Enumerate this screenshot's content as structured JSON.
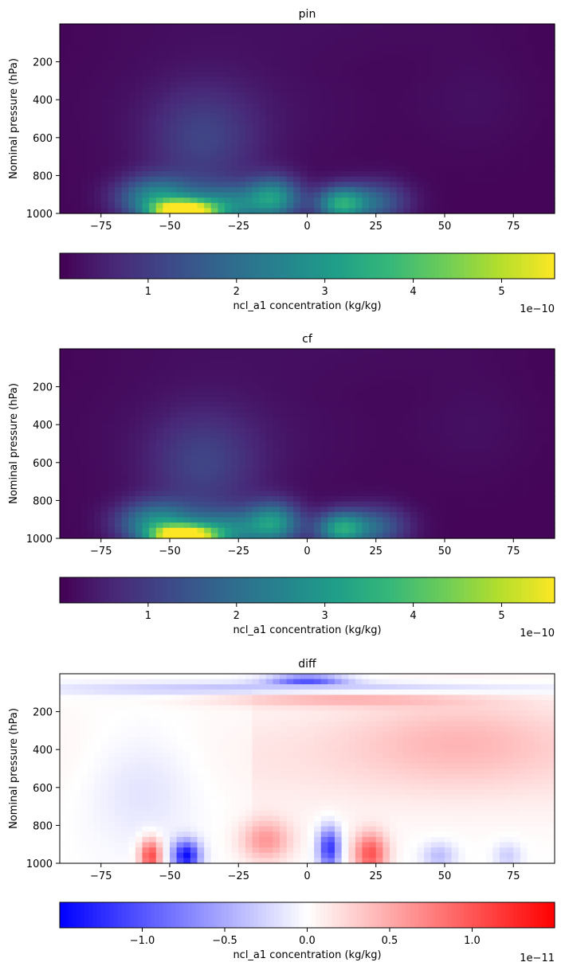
{
  "chart_data": [
    {
      "type": "heatmap",
      "title": "pin",
      "xlabel": "",
      "ylabel": "Nominal pressure (hPa)",
      "xlim": [
        -90,
        90
      ],
      "ylim": [
        1000,
        0
      ],
      "xticks": [
        -75,
        -50,
        -25,
        0,
        25,
        50,
        75
      ],
      "yticks": [
        200,
        400,
        600,
        800,
        1000
      ],
      "colormap": "viridis",
      "colorbar": {
        "label": "ncl_a1 concentration (kg/kg)",
        "range": [
          0,
          5.6
        ],
        "ticks": [
          1,
          2,
          3,
          4,
          5
        ],
        "tick_labels": [
          "1",
          "2",
          "3",
          "4",
          "5"
        ],
        "exponent": "1e−10"
      },
      "features": [
        {
          "lat": -45,
          "pressure": 990,
          "value": 5.6,
          "lat_spread": 11,
          "p_spread": 55
        },
        {
          "lat": -55,
          "pressure": 920,
          "value": 2.6,
          "lat_spread": 14,
          "p_spread": 110
        },
        {
          "lat": -30,
          "pressure": 960,
          "value": 2.2,
          "lat_spread": 14,
          "p_spread": 110
        },
        {
          "lat": -12,
          "pressure": 920,
          "value": 2.7,
          "lat_spread": 10,
          "p_spread": 110
        },
        {
          "lat": 12,
          "pressure": 950,
          "value": 3.0,
          "lat_spread": 9,
          "p_spread": 90
        },
        {
          "lat": 25,
          "pressure": 940,
          "value": 1.6,
          "lat_spread": 12,
          "p_spread": 110
        },
        {
          "lat": -38,
          "pressure": 620,
          "value": 0.9,
          "lat_spread": 20,
          "p_spread": 280
        }
      ]
    },
    {
      "type": "heatmap",
      "title": "cf",
      "xlabel": "",
      "ylabel": "Nominal pressure (hPa)",
      "xlim": [
        -90,
        90
      ],
      "ylim": [
        1000,
        0
      ],
      "xticks": [
        -75,
        -50,
        -25,
        0,
        25,
        50,
        75
      ],
      "yticks": [
        200,
        400,
        600,
        800,
        1000
      ],
      "colormap": "viridis",
      "colorbar": {
        "label": "ncl_a1 concentration (kg/kg)",
        "range": [
          0,
          5.6
        ],
        "ticks": [
          1,
          2,
          3,
          4,
          5
        ],
        "tick_labels": [
          "1",
          "2",
          "3",
          "4",
          "5"
        ],
        "exponent": "1e−10"
      },
      "features": [
        {
          "lat": -45,
          "pressure": 990,
          "value": 5.6,
          "lat_spread": 11,
          "p_spread": 55
        },
        {
          "lat": -55,
          "pressure": 920,
          "value": 2.6,
          "lat_spread": 14,
          "p_spread": 110
        },
        {
          "lat": -30,
          "pressure": 960,
          "value": 2.2,
          "lat_spread": 14,
          "p_spread": 110
        },
        {
          "lat": -12,
          "pressure": 920,
          "value": 2.7,
          "lat_spread": 10,
          "p_spread": 110
        },
        {
          "lat": 12,
          "pressure": 950,
          "value": 2.9,
          "lat_spread": 9,
          "p_spread": 90
        },
        {
          "lat": 25,
          "pressure": 940,
          "value": 1.6,
          "lat_spread": 12,
          "p_spread": 110
        },
        {
          "lat": -38,
          "pressure": 620,
          "value": 0.9,
          "lat_spread": 20,
          "p_spread": 280
        }
      ]
    },
    {
      "type": "heatmap",
      "title": "diff",
      "xlabel": "",
      "ylabel": "Nominal pressure (hPa)",
      "xlim": [
        -90,
        90
      ],
      "ylim": [
        1000,
        0
      ],
      "xticks": [
        -75,
        -50,
        -25,
        0,
        25,
        50,
        75
      ],
      "yticks": [
        200,
        400,
        600,
        800,
        1000
      ],
      "colormap": "bwr",
      "colorbar": {
        "label": "ncl_a1 concentration (kg/kg)",
        "range": [
          -1.5,
          1.5
        ],
        "ticks": [
          -1.0,
          -0.5,
          0.0,
          0.5,
          1.0
        ],
        "tick_labels": [
          "−1.0",
          "−0.5",
          "0.0",
          "0.5",
          "1.0"
        ],
        "exponent": "1e−11"
      },
      "features": [
        {
          "lat": 0,
          "pressure": 30,
          "value": -1.4,
          "lat_spread": 14,
          "p_spread": 18
        },
        {
          "lat": 0,
          "pressure": 80,
          "value": -0.45,
          "lat_spread": 90,
          "p_spread": 35
        },
        {
          "lat": 10,
          "pressure": 130,
          "value": 0.45,
          "lat_spread": 45,
          "p_spread": 40
        },
        {
          "lat": 55,
          "pressure": 350,
          "value": 0.3,
          "lat_spread": 40,
          "p_spread": 230
        },
        {
          "lat": -60,
          "pressure": 600,
          "value": -0.2,
          "lat_spread": 20,
          "p_spread": 300
        },
        {
          "lat": -57,
          "pressure": 960,
          "value": 1.1,
          "lat_spread": 4,
          "p_spread": 90
        },
        {
          "lat": -44,
          "pressure": 960,
          "value": -1.4,
          "lat_spread": 5,
          "p_spread": 80
        },
        {
          "lat": -15,
          "pressure": 880,
          "value": 0.6,
          "lat_spread": 9,
          "p_spread": 110
        },
        {
          "lat": 8,
          "pressure": 920,
          "value": -1.2,
          "lat_spread": 4,
          "p_spread": 110
        },
        {
          "lat": 23,
          "pressure": 950,
          "value": 1.0,
          "lat_spread": 6,
          "p_spread": 110
        },
        {
          "lat": 48,
          "pressure": 960,
          "value": -0.4,
          "lat_spread": 6,
          "p_spread": 70
        },
        {
          "lat": 73,
          "pressure": 960,
          "value": -0.3,
          "lat_spread": 5,
          "p_spread": 70
        }
      ]
    }
  ]
}
